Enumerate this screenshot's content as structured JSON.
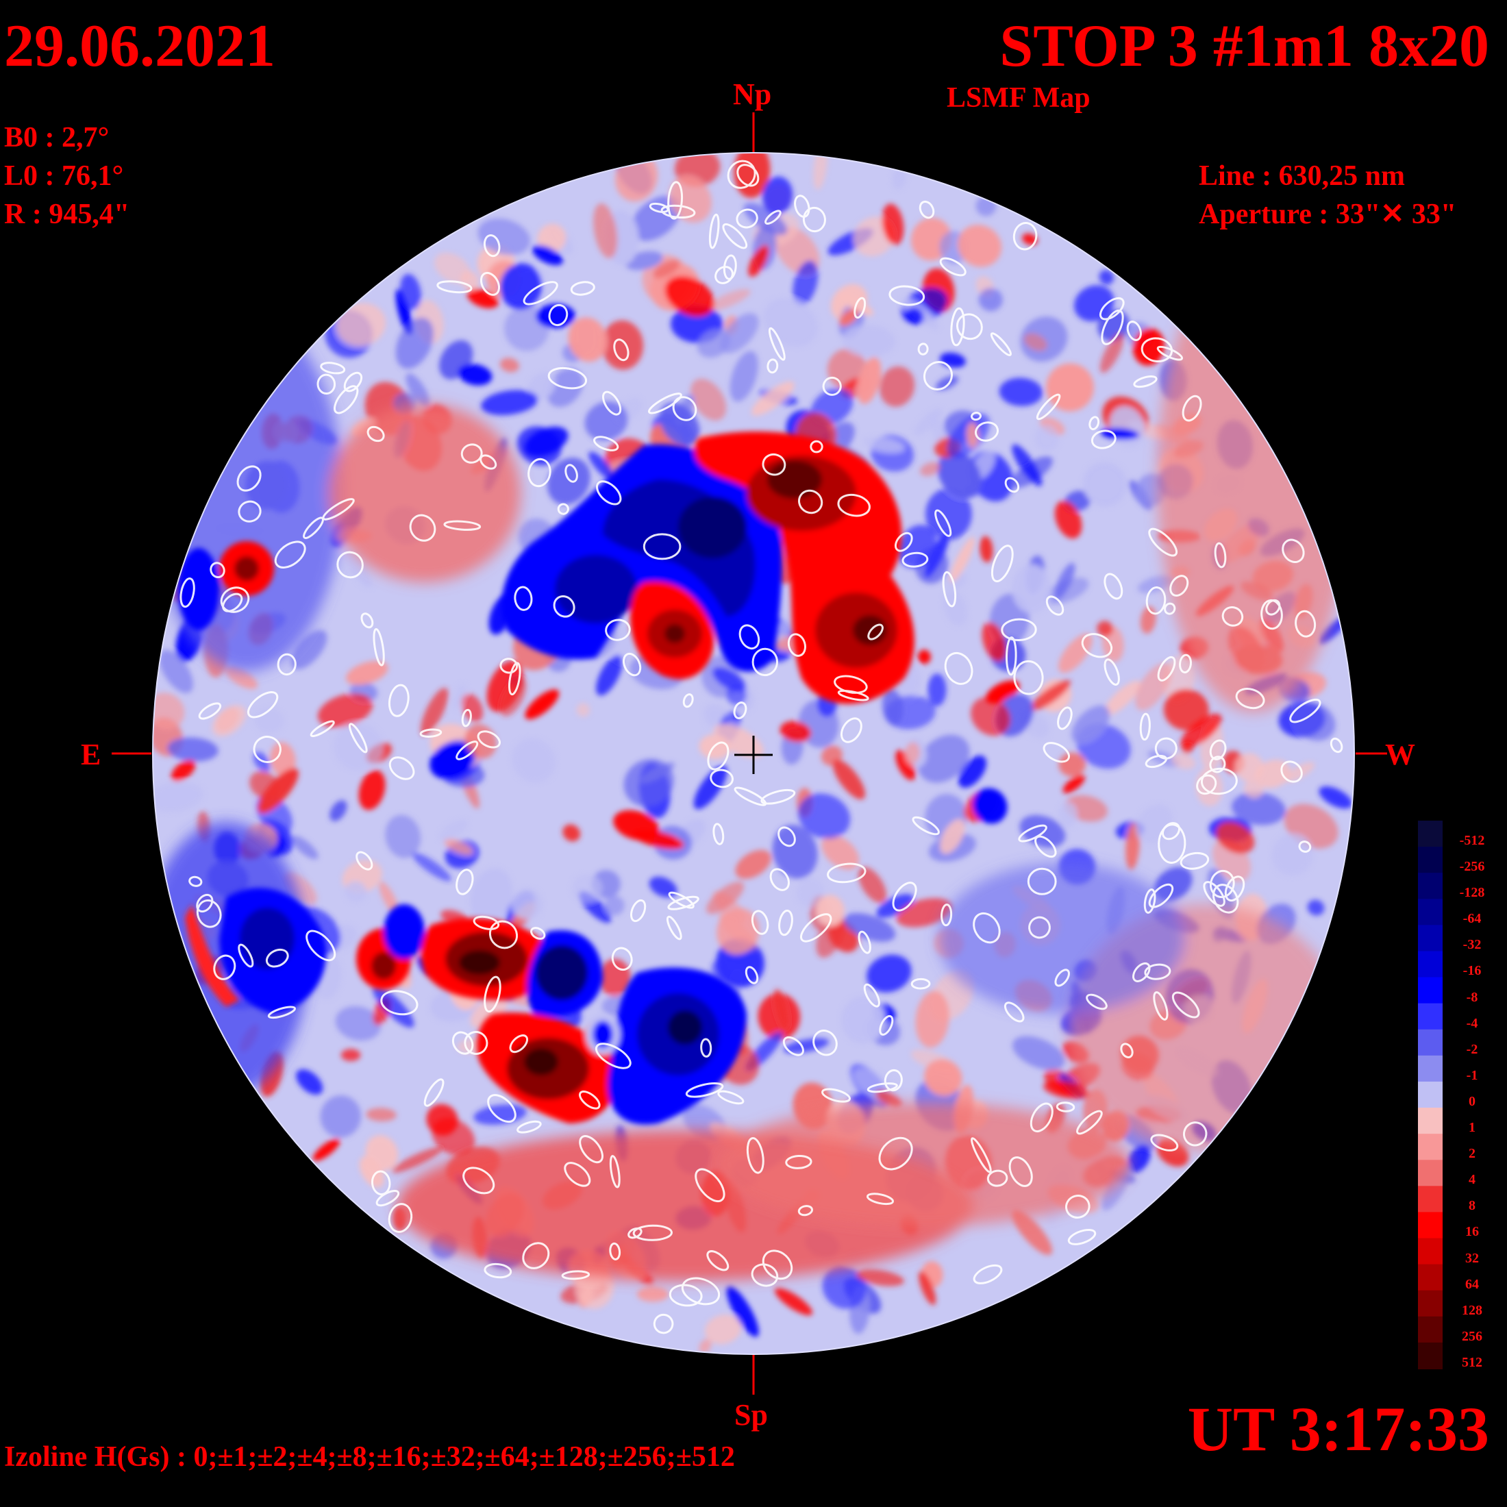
{
  "header": {
    "date": "29.06.2021",
    "title": "STOP 3 #1m1 8x20",
    "subtitle": "LSMF  Map"
  },
  "params": {
    "b0": "B0 : 2,7°",
    "l0": "L0 : 76,1°",
    "radius": "R  : 945,4\"",
    "line": "Line :  630,25 nm",
    "aperture": "Aperture : 33\"✕ 33\""
  },
  "directions": {
    "north": "Np",
    "south": "Sp",
    "east": "E",
    "west": "W"
  },
  "time": "UT 3:17:33",
  "izoline": "Izoline H(Gs) : 0;±1;±2;±4;±8;±16;±32;±64;±128;±256;±512",
  "colorscale": {
    "labels": [
      "-512",
      "-256",
      "-128",
      "-64",
      "-32",
      "-16",
      "-8",
      "-4",
      "-2",
      "-1",
      "0",
      "1",
      "2",
      "4",
      "8",
      "16",
      "32",
      "64",
      "128",
      "256",
      "512"
    ],
    "colors": [
      "#0a0a3a",
      "#000050",
      "#000070",
      "#000090",
      "#0000b0",
      "#0000d8",
      "#0000ff",
      "#3030ff",
      "#5c5cf0",
      "#8c8cf0",
      "#c0c0f4",
      "#f8c0c0",
      "#f89898",
      "#f07070",
      "#f03030",
      "#ff0000",
      "#d80000",
      "#b00000",
      "#880000",
      "#600000",
      "#3a0000"
    ]
  },
  "colors": {
    "text": "#ff0000",
    "disk_neutral_blue": "#c0c0f4",
    "disk_neutral_red": "#f8c0c0"
  }
}
